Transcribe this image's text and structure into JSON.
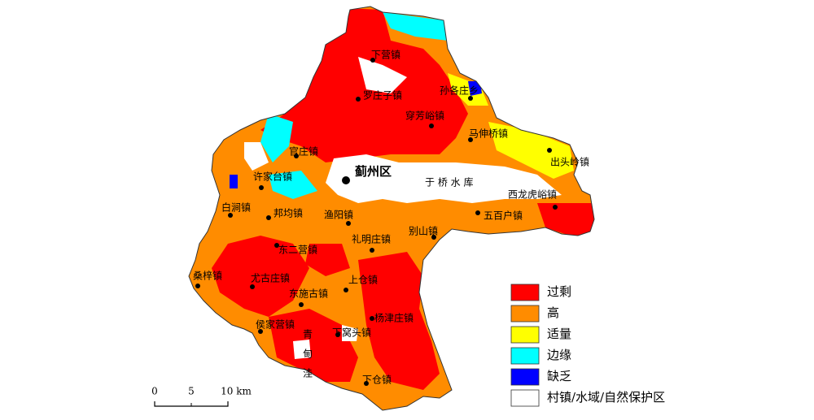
{
  "map": {
    "district": "蓟州区",
    "reservoir": "于 桥 水 库",
    "area": "青甸洼",
    "towns": [
      "下营镇",
      "罗庄子镇",
      "孙各庄乡",
      "穿芳峪镇",
      "马伸桥镇",
      "官庄镇",
      "出头岭镇",
      "许家台镇",
      "西龙虎峪镇",
      "白涧镇",
      "邦均镇",
      "渔阳镇",
      "五百户镇",
      "礼明庄镇",
      "别山镇",
      "东二营镇",
      "桑梓镇",
      "尤古庄镇",
      "上仓镇",
      "东施古镇",
      "杨津庄镇",
      "侯家营镇",
      "下窝头镇",
      "下仓镇"
    ]
  },
  "legend": [
    {
      "label": "过剩",
      "color": "#ff0000"
    },
    {
      "label": "高",
      "color": "#ff8c00"
    },
    {
      "label": "适量",
      "color": "#ffff00"
    },
    {
      "label": "边缘",
      "color": "#00ffff"
    },
    {
      "label": "缺乏",
      "color": "#0000ff"
    },
    {
      "label": "村镇/水域/自然保护区",
      "color": "#ffffff"
    }
  ],
  "scale": {
    "labels": [
      "0",
      "5",
      "10 km"
    ]
  }
}
